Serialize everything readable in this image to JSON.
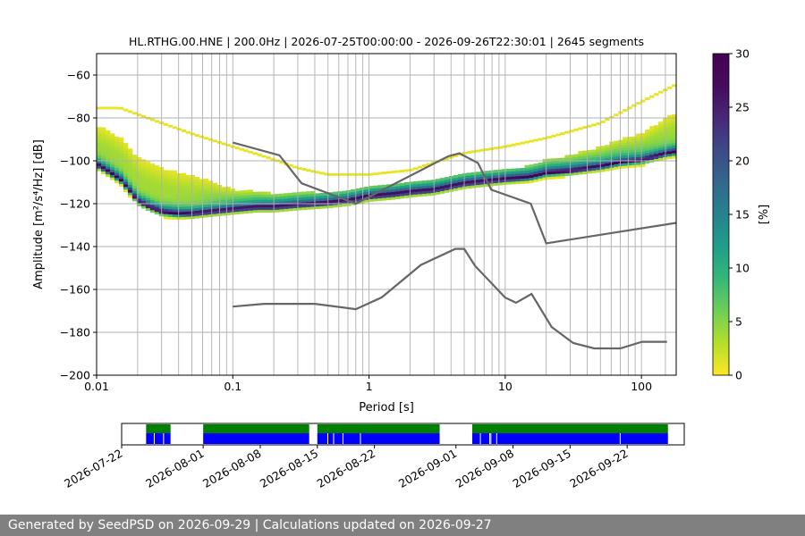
{
  "chart_data": [
    {
      "type": "heatmap",
      "title": "HL.RTHG.00.HNE | 200.0Hz | 2026-07-25T00:00:00 - 2026-09-26T22:30:01 | 2645 segments",
      "xlabel": "Period [s]",
      "ylabel": "Amplitude [m²/s⁴/Hz] [dB]",
      "x_scale": "log",
      "xlim": [
        0.01,
        180
      ],
      "ylim": [
        -200,
        -50
      ],
      "x_ticks": [
        "0.01",
        "0.1",
        "1",
        "10",
        "100"
      ],
      "y_ticks": [
        "−60",
        "−80",
        "−100",
        "−120",
        "−140",
        "−160",
        "−180",
        "−200"
      ],
      "colorbar": {
        "label": "[%]",
        "range": [
          0,
          30
        ],
        "ticks": [
          "0",
          "5",
          "10",
          "15",
          "20",
          "25",
          "30"
        ],
        "colormap": "viridis_r"
      },
      "mode_curve": {
        "x": [
          0.01,
          0.012,
          0.015,
          0.018,
          0.02,
          0.025,
          0.03,
          0.04,
          0.05,
          0.07,
          0.1,
          0.15,
          0.2,
          0.3,
          0.5,
          0.7,
          1,
          1.5,
          2,
          3,
          5,
          7,
          10,
          15,
          20,
          30,
          50,
          70,
          100,
          150,
          180
        ],
        "y": [
          -102,
          -105,
          -109,
          -115,
          -119,
          -122,
          -124,
          -125,
          -125,
          -124,
          -123,
          -122,
          -122,
          -121,
          -120,
          -119,
          -117,
          -116,
          -115,
          -114,
          -111,
          -110,
          -109,
          -108,
          -106,
          -105,
          -103,
          -101,
          -100,
          -97,
          -96
        ]
      },
      "density_spread_db": {
        "x": [
          0.01,
          0.02,
          0.03,
          0.05,
          0.1,
          0.2,
          0.5,
          1,
          3,
          10,
          30,
          100,
          180
        ],
        "above": [
          18,
          20,
          20,
          18,
          9,
          6,
          5,
          4,
          5,
          4,
          7,
          12,
          18
        ],
        "below": [
          2,
          3,
          3,
          2,
          2,
          2,
          2,
          2,
          2,
          2,
          3,
          4,
          5
        ]
      },
      "outlier_curve": {
        "x": [
          0.01,
          0.015,
          0.02,
          0.03,
          0.05,
          0.1,
          0.2,
          0.3,
          0.5,
          1,
          2,
          5,
          10,
          20,
          50,
          100,
          180
        ],
        "y": [
          -76,
          -76,
          -79,
          -83,
          -88,
          -94,
          -100,
          -104,
          -107,
          -107,
          -105,
          -97,
          -94,
          -90,
          -83,
          -73,
          -65
        ]
      },
      "series": [
        {
          "name": "NHNM",
          "x": [
            0.1,
            0.22,
            0.32,
            0.8,
            3.8,
            4.6,
            6.3,
            7.9,
            15.4,
            20,
            354.8
          ],
          "y": [
            -91.5,
            -97.4,
            -110.5,
            -120,
            -97.9,
            -96.5,
            -101,
            -113.5,
            -120,
            -138.5,
            -126
          ]
        },
        {
          "name": "NLNM",
          "x": [
            0.1,
            0.17,
            0.4,
            0.8,
            1.24,
            2.4,
            4.3,
            5,
            6,
            10,
            12,
            15.6,
            21.9,
            31.6,
            45,
            70,
            101,
            154
          ],
          "y": [
            -168,
            -166.7,
            -166.7,
            -169.2,
            -163.7,
            -148.6,
            -141.1,
            -141.1,
            -149,
            -163.8,
            -166.2,
            -162.1,
            -177.5,
            -185,
            -187.5,
            -187.5,
            -184.4,
            -184.4
          ]
        }
      ],
      "vertical_lines_period_s": [
        0.02,
        0.03,
        0.04,
        0.05,
        0.06,
        0.07,
        0.08,
        0.09,
        0.2,
        0.3,
        0.4,
        0.5,
        0.6,
        0.7,
        0.8,
        0.9,
        2,
        3,
        4,
        5,
        6,
        7,
        8,
        9,
        20,
        30,
        40,
        50,
        60,
        70,
        80,
        90,
        150,
        180
      ],
      "grid": true
    },
    {
      "type": "timeline",
      "x_ticks": [
        "2026-07-22",
        "2026-08-01",
        "2026-08-08",
        "2026-08-15",
        "2026-08-22",
        "2026-09-01",
        "2026-09-08",
        "2026-09-15",
        "2026-09-22"
      ],
      "xlim": [
        "2026-07-22",
        "2026-09-29"
      ],
      "available_ranges": [
        [
          "2026-07-25",
          "2026-07-28"
        ],
        [
          "2026-08-01",
          "2026-08-14"
        ],
        [
          "2026-08-15",
          "2026-08-30"
        ],
        [
          "2026-09-03",
          "2026-09-27"
        ]
      ],
      "used_ranges": [
        [
          "2026-07-25",
          "2026-07-28"
        ],
        [
          "2026-08-01",
          "2026-08-14"
        ],
        [
          "2026-08-15",
          "2026-08-30"
        ],
        [
          "2026-09-03",
          "2026-09-27"
        ]
      ],
      "gaps": [
        "2026-07-26",
        "2026-07-27",
        "2026-08-16",
        "2026-08-17",
        "2026-08-18",
        "2026-08-20",
        "2026-09-04",
        "2026-09-05",
        "2026-09-05",
        "2026-09-06",
        "2026-09-21"
      ],
      "colors": {
        "available": "#008000",
        "used": "#0000ff",
        "gap": "#ffffff"
      }
    }
  ],
  "footer": {
    "text": "Generated by SeedPSD on 2026-09-29 | Calculations updated on 2026-09-27"
  }
}
